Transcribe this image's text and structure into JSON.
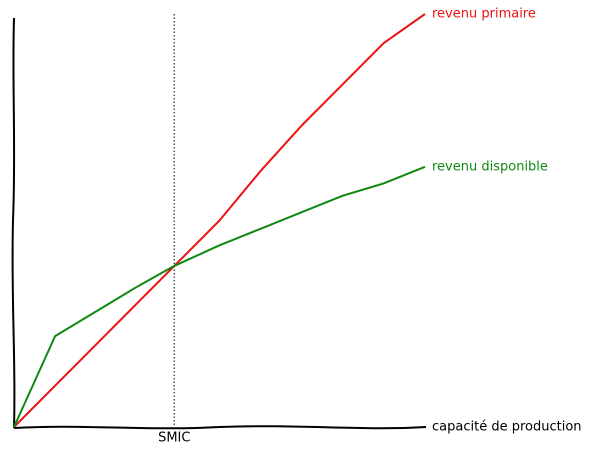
{
  "chart_data": {
    "type": "line",
    "x_label": "capacité de production",
    "x": [
      0,
      10,
      20,
      30,
      39,
      50,
      60,
      70,
      80,
      90,
      100
    ],
    "series": [
      {
        "name": "revenu primaire",
        "color": "#ee1111",
        "values": [
          0,
          10,
          20,
          30,
          39,
          50,
          62,
          73,
          83,
          93,
          100
        ]
      },
      {
        "name": "revenu disponible",
        "color": "#118811",
        "values": [
          0,
          22,
          28,
          34,
          39,
          44,
          48,
          52,
          56,
          59,
          63
        ]
      }
    ],
    "xlim": [
      0,
      100
    ],
    "ylim": [
      0,
      100
    ],
    "vline": {
      "x": 39,
      "label": "SMIC"
    }
  }
}
